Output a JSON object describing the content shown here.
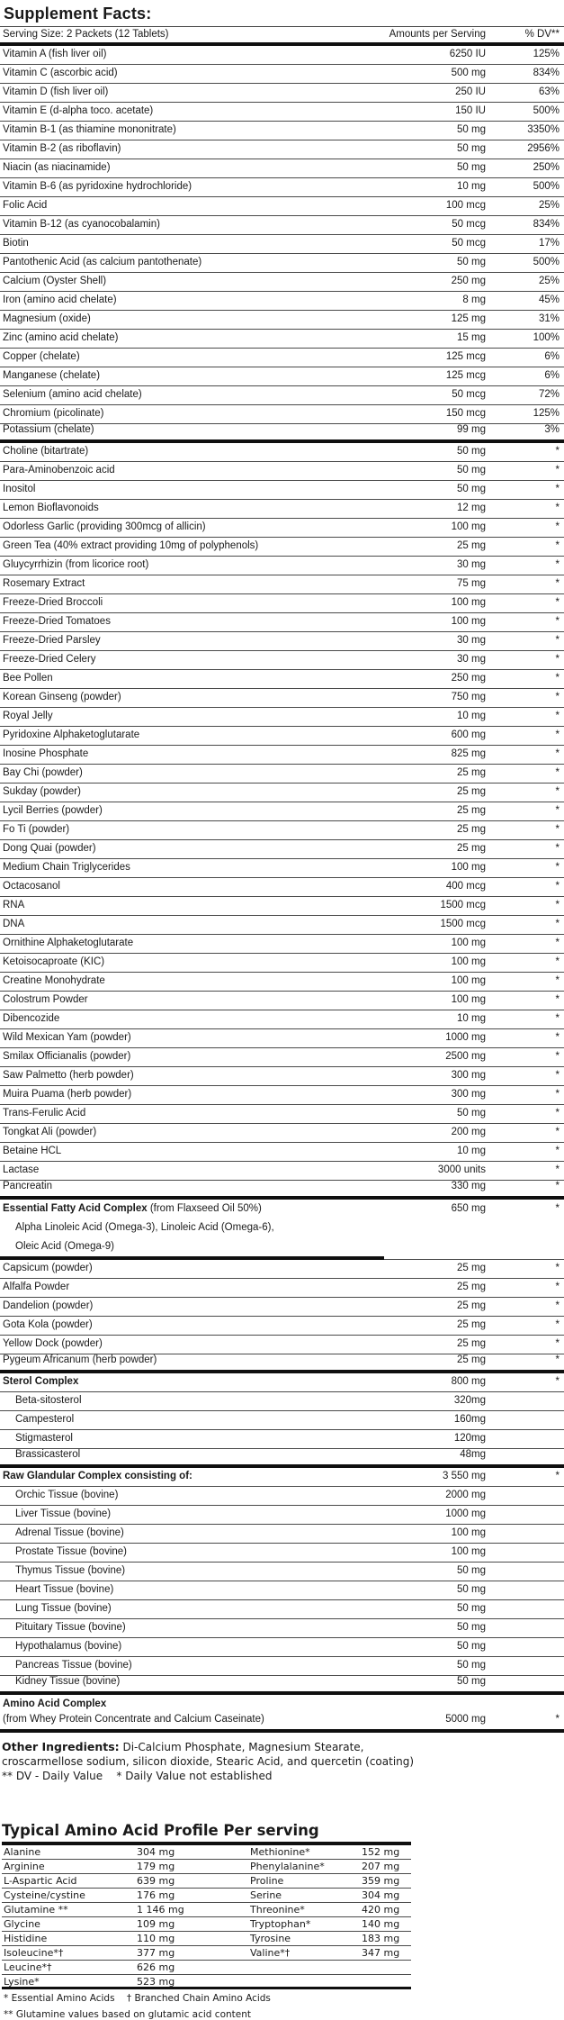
{
  "title": "Supplement Facts:",
  "main_table": {
    "header": {
      "serving": "Serving Size: 2 Packets (12 Tablets)",
      "amounts": "Amounts per Serving",
      "dv": "% DV**"
    },
    "rows": [
      {
        "label": "Vitamin A (fish liver oil)",
        "amount": "6250 IU",
        "dv": "125%"
      },
      {
        "label": "Vitamin C (ascorbic acid)",
        "amount": "500 mg",
        "dv": "834%"
      },
      {
        "label": "Vitamin D (fish liver oil)",
        "amount": "250 IU",
        "dv": "63%"
      },
      {
        "label": "Vitamin E (d-alpha toco. acetate)",
        "amount": "150 IU",
        "dv": "500%"
      },
      {
        "label": "Vitamin B-1 (as thiamine mononitrate)",
        "amount": "50 mg",
        "dv": "3350%"
      },
      {
        "label": "Vitamin B-2 (as riboflavin)",
        "amount": "50 mg",
        "dv": "2956%"
      },
      {
        "label": "Niacin (as niacinamide)",
        "amount": "50 mg",
        "dv": "250%"
      },
      {
        "label": "Vitamin B-6 (as pyridoxine hydrochloride)",
        "amount": "10 mg",
        "dv": "500%"
      },
      {
        "label": "Folic Acid",
        "amount": "100 mcg",
        "dv": "25%"
      },
      {
        "label": "Vitamin B-12 (as cyanocobalamin)",
        "amount": "50 mcg",
        "dv": "834%"
      },
      {
        "label": "Biotin",
        "amount": "50 mcg",
        "dv": "17%"
      },
      {
        "label": "Pantothenic Acid (as calcium pantothenate)",
        "amount": "50 mg",
        "dv": "500%"
      },
      {
        "label": "Calcium (Oyster Shell)",
        "amount": "250 mg",
        "dv": "25%"
      },
      {
        "label": "Iron (amino acid chelate)",
        "amount": "8 mg",
        "dv": "45%"
      },
      {
        "label": "Magnesium (oxide)",
        "amount": "125 mg",
        "dv": "31%"
      },
      {
        "label": "Zinc (amino acid chelate)",
        "amount": "15 mg",
        "dv": "100%"
      },
      {
        "label": "Copper (chelate)",
        "amount": "125 mcg",
        "dv": "6%"
      },
      {
        "label": "Manganese (chelate)",
        "amount": "125 mcg",
        "dv": "6%"
      },
      {
        "label": "Selenium (amino acid chelate)",
        "amount": "50 mcg",
        "dv": "72%"
      },
      {
        "label": "Chromium (picolinate)",
        "amount": "150 mcg",
        "dv": "125%"
      },
      {
        "label": "Potassium (chelate)",
        "amount": "99 mg",
        "dv": "3%",
        "divider": "thick"
      },
      {
        "label": "Choline (bitartrate)",
        "amount": "50 mg",
        "dv": "*"
      },
      {
        "label": "Para-Aminobenzoic acid",
        "amount": "50 mg",
        "dv": "*"
      },
      {
        "label": "Inositol",
        "amount": "50 mg",
        "dv": "*"
      },
      {
        "label": "Lemon Bioflavonoids",
        "amount": "12 mg",
        "dv": "*"
      },
      {
        "label": "Odorless Garlic (providing 300mcg of allicin)",
        "amount": "100 mg",
        "dv": "*"
      },
      {
        "label": "Green Tea (40% extract providing 10mg of polyphenols)",
        "amount": "25 mg",
        "dv": "*"
      },
      {
        "label": "Gluycyrrhizin (from licorice root)",
        "amount": "30 mg",
        "dv": "*"
      },
      {
        "label": "Rosemary Extract",
        "amount": "75 mg",
        "dv": "*"
      },
      {
        "label": "Freeze-Dried Broccoli",
        "amount": "100 mg",
        "dv": "*"
      },
      {
        "label": "Freeze-Dried Tomatoes",
        "amount": "100 mg",
        "dv": "*"
      },
      {
        "label": "Freeze-Dried Parsley",
        "amount": "30 mg",
        "dv": "*"
      },
      {
        "label": "Freeze-Dried Celery",
        "amount": "30 mg",
        "dv": "*"
      },
      {
        "label": "Bee Pollen",
        "amount": "250 mg",
        "dv": "*"
      },
      {
        "label": "Korean Ginseng (powder)",
        "amount": "750 mg",
        "dv": "*"
      },
      {
        "label": "Royal Jelly",
        "amount": "10 mg",
        "dv": "*"
      },
      {
        "label": "Pyridoxine Alphaketoglutarate",
        "amount": "600 mg",
        "dv": "*"
      },
      {
        "label": "Inosine Phosphate",
        "amount": "825 mg",
        "dv": "*"
      },
      {
        "label": "Bay Chi (powder)",
        "amount": "25 mg",
        "dv": "*"
      },
      {
        "label": "Sukday (powder)",
        "amount": "25 mg",
        "dv": "*"
      },
      {
        "label": "Lycil Berries (powder)",
        "amount": "25 mg",
        "dv": "*"
      },
      {
        "label": "Fo Ti (powder)",
        "amount": "25 mg",
        "dv": "*"
      },
      {
        "label": "Dong Quai (powder)",
        "amount": "25 mg",
        "dv": "*"
      },
      {
        "label": "Medium Chain Triglycerides",
        "amount": "100 mg",
        "dv": "*"
      },
      {
        "label": "Octacosanol",
        "amount": "400 mcg",
        "dv": "*"
      },
      {
        "label": "RNA",
        "amount": "1500 mcg",
        "dv": "*"
      },
      {
        "label": "DNA",
        "amount": "1500 mcg",
        "dv": "*"
      },
      {
        "label": "Ornithine Alphaketoglutarate",
        "amount": "100 mg",
        "dv": "*"
      },
      {
        "label": "Ketoisocaproate (KIC)",
        "amount": "100 mg",
        "dv": "*"
      },
      {
        "label": "Creatine Monohydrate",
        "amount": "100 mg",
        "dv": "*"
      },
      {
        "label": "Colostrum Powder",
        "amount": "100 mg",
        "dv": "*"
      },
      {
        "label": "Dibencozide",
        "amount": "10 mg",
        "dv": "*"
      },
      {
        "label": "Wild Mexican Yam (powder)",
        "amount": "1000 mg",
        "dv": "*"
      },
      {
        "label": "Smilax Officianalis (powder)",
        "amount": "2500 mg",
        "dv": "*"
      },
      {
        "label": "Saw Palmetto (herb powder)",
        "amount": "300 mg",
        "dv": "*"
      },
      {
        "label": "Muira Puama (herb powder)",
        "amount": "300 mg",
        "dv": "*"
      },
      {
        "label": "Trans-Ferulic Acid",
        "amount": "50 mg",
        "dv": "*"
      },
      {
        "label": "Tongkat Ali (powder)",
        "amount": "200 mg",
        "dv": "*"
      },
      {
        "label": "Betaine HCL",
        "amount": "10 mg",
        "dv": "*"
      },
      {
        "label": "Lactase",
        "amount": "3000 units",
        "dv": "*"
      },
      {
        "label": "Pancreatin",
        "amount": "330 mg",
        "dv": "*",
        "divider": "thick"
      },
      {
        "label": "Essential Fatty Acid Complex",
        "suffix": " (from Flaxseed Oil 50%)",
        "amount": "650 mg",
        "dv": "*",
        "style": "bold",
        "divider": "none"
      },
      {
        "label": "Alpha Linoleic Acid (Omega-3), Linoleic Acid (Omega-6),",
        "amount": "",
        "dv": "",
        "style": "subline",
        "divider": "none"
      },
      {
        "label": "Oleic Acid (Omega-9)",
        "amount": "",
        "dv": "",
        "style": "subline",
        "divider": "partial"
      },
      {
        "label": "Capsicum (powder)",
        "amount": "25 mg",
        "dv": "*"
      },
      {
        "label": "Alfalfa Powder",
        "amount": "25 mg",
        "dv": "*"
      },
      {
        "label": "Dandelion (powder)",
        "amount": "25 mg",
        "dv": "*"
      },
      {
        "label": "Gota Kola (powder)",
        "amount": "25 mg",
        "dv": "*"
      },
      {
        "label": "Yellow Dock (powder)",
        "amount": "25 mg",
        "dv": "*"
      },
      {
        "label": "Pygeum Africanum (herb powder)",
        "amount": "25 mg",
        "dv": "*",
        "divider": "thick"
      },
      {
        "label": "Sterol Complex",
        "amount": "800 mg",
        "dv": "*",
        "style": "bold"
      },
      {
        "label": "Beta-sitosterol",
        "amount": "320mg",
        "dv": "",
        "style": "sub"
      },
      {
        "label": "Campesterol",
        "amount": "160mg",
        "dv": "",
        "style": "sub"
      },
      {
        "label": "Stigmasterol",
        "amount": "120mg",
        "dv": "",
        "style": "sub"
      },
      {
        "label": "Brassicasterol",
        "amount": "48mg",
        "dv": "",
        "style": "sub",
        "divider": "thick"
      },
      {
        "label": "Raw Glandular Complex consisting of:",
        "amount": "3 550 mg",
        "dv": "*",
        "style": "bold"
      },
      {
        "label": "Orchic Tissue (bovine)",
        "amount": "2000 mg",
        "dv": "",
        "style": "sub"
      },
      {
        "label": "Liver Tissue (bovine)",
        "amount": "1000 mg",
        "dv": "",
        "style": "sub"
      },
      {
        "label": "Adrenal Tissue (bovine)",
        "amount": "100 mg",
        "dv": "",
        "style": "sub"
      },
      {
        "label": "Prostate Tissue (bovine)",
        "amount": "100 mg",
        "dv": "",
        "style": "sub"
      },
      {
        "label": "Thymus Tissue (bovine)",
        "amount": "50 mg",
        "dv": "",
        "style": "sub"
      },
      {
        "label": "Heart Tissue (bovine)",
        "amount": "50 mg",
        "dv": "",
        "style": "sub"
      },
      {
        "label": "Lung Tissue (bovine)",
        "amount": "50 mg",
        "dv": "",
        "style": "sub"
      },
      {
        "label": "Pituitary Tissue (bovine)",
        "amount": "50 mg",
        "dv": "",
        "style": "sub"
      },
      {
        "label": "Hypothalamus (bovine)",
        "amount": "50 mg",
        "dv": "",
        "style": "sub"
      },
      {
        "label": "Pancreas Tissue (bovine)",
        "amount": "50 mg",
        "dv": "",
        "style": "sub"
      },
      {
        "label": "Kidney Tissue (bovine)",
        "amount": "50 mg",
        "dv": "",
        "style": "sub",
        "divider": "thick"
      },
      {
        "label": "Amino Acid Complex",
        "amount": "",
        "dv": "",
        "style": "bold",
        "divider": "none"
      },
      {
        "label": "(from Whey Protein Concentrate and Calcium Caseinate)",
        "amount": "5000 mg",
        "dv": "*",
        "divider": "thick"
      }
    ]
  },
  "footer": {
    "other_ingredients_label": "Other Ingredients:",
    "other_ingredients_line1": " Di-Calcium Phosphate, Magnesium Stearate,",
    "other_ingredients_line2": "croscarmellose sodium, silicon dioxide, Stearic Acid, and quercetin (coating)",
    "dv_note": "** DV - Daily Value    * Daily Value not established"
  },
  "amino_profile": {
    "heading": "Typical Amino Acid Profile Per serving",
    "rows": [
      {
        "n1": "Alanine",
        "v1": "304 mg",
        "n2": "Methionine*",
        "v2": "152 mg"
      },
      {
        "n1": "Arginine",
        "v1": "179 mg",
        "n2": "Phenylalanine*",
        "v2": "207 mg"
      },
      {
        "n1": "L-Aspartic Acid",
        "v1": "639 mg",
        "n2": "Proline",
        "v2": "359 mg"
      },
      {
        "n1": "Cysteine/cystine",
        "v1": "176 mg",
        "n2": "Serine",
        "v2": "304 mg"
      },
      {
        "n1": "Glutamine **",
        "v1": "1 146 mg",
        "n2": "Threonine*",
        "v2": "420 mg"
      },
      {
        "n1": "Glycine",
        "v1": "109 mg",
        "n2": "Tryptophan*",
        "v2": "140 mg"
      },
      {
        "n1": "Histidine",
        "v1": "110 mg",
        "n2": "Tyrosine",
        "v2": "183 mg"
      },
      {
        "n1": "Isoleucine*†",
        "v1": "377 mg",
        "n2": "Valine*†",
        "v2": "347 mg"
      },
      {
        "n1": "Leucine*†",
        "v1": "626 mg",
        "n2": "",
        "v2": ""
      },
      {
        "n1": "Lysine*",
        "v1": "523 mg",
        "n2": "",
        "v2": ""
      }
    ],
    "footnote1": "* Essential Amino Acids    † Branched Chain Amino Acids",
    "footnote2": "** Glutamine values based on glutamic acid content"
  }
}
